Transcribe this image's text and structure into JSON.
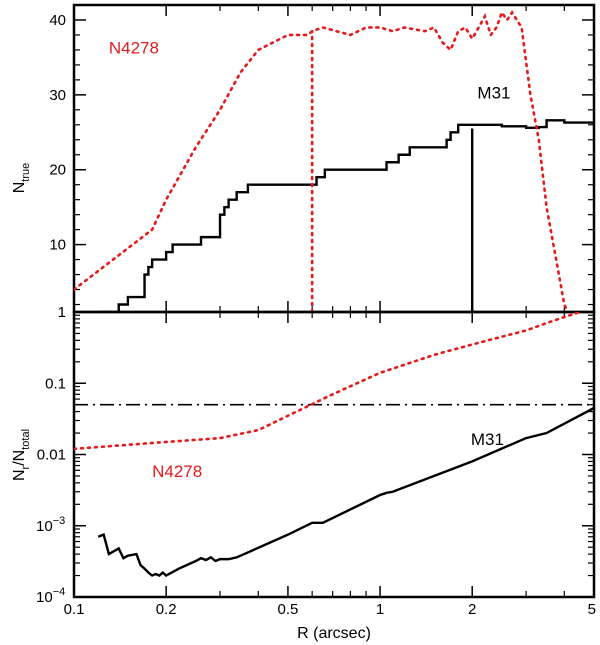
{
  "colors": {
    "m31": "#000000",
    "n4278": "#e41a1c",
    "axis": "#000000"
  },
  "chart_data": [
    {
      "panel": "top",
      "type": "line",
      "xscale": "log",
      "xlim": [
        0.1,
        5
      ],
      "ylim": [
        1,
        42
      ],
      "yticks": [
        10,
        20,
        30,
        40
      ],
      "ytick_labels": [
        "10",
        "20",
        "30",
        "40"
      ],
      "ylabel_main": "N",
      "ylabel_sub": "true",
      "series": [
        {
          "name": "M31",
          "style": "solid-step",
          "x": [
            0.12,
            0.13,
            0.135,
            0.14,
            0.145,
            0.15,
            0.155,
            0.16,
            0.17,
            0.175,
            0.18,
            0.185,
            0.19,
            0.2,
            0.21,
            0.22,
            0.25,
            0.26,
            0.27,
            0.28,
            0.3,
            0.31,
            0.32,
            0.33,
            0.34,
            0.35,
            0.36,
            0.37,
            0.38,
            0.6,
            0.62,
            0.64,
            0.66,
            0.68,
            0.8,
            1.0,
            1.05,
            1.1,
            1.15,
            1.2,
            1.25,
            1.3,
            1.4,
            1.5,
            1.6,
            1.65,
            1.7,
            1.8,
            2.0,
            2.5,
            3.0,
            3.3,
            3.5,
            4.0,
            5.0
          ],
          "y": [
            1,
            1,
            1,
            2,
            2,
            3,
            3,
            3,
            6,
            7,
            8,
            8,
            8,
            9,
            10,
            10,
            10,
            11,
            11,
            11,
            14,
            15,
            16,
            16,
            17,
            17,
            17,
            18,
            18,
            18,
            19,
            19,
            20,
            20,
            20,
            20,
            21,
            21,
            22,
            22,
            23,
            23,
            23,
            23,
            23,
            24,
            25,
            26,
            26,
            25.8,
            25.6,
            25.7,
            26.6,
            26.3,
            26
          ]
        },
        {
          "name": "N4278",
          "style": "dotted",
          "x": [
            0.1,
            0.18,
            0.2,
            0.25,
            0.3,
            0.35,
            0.4,
            0.5,
            0.58,
            0.6,
            0.65,
            0.8,
            0.9,
            1.0,
            1.1,
            1.2,
            1.4,
            1.5,
            1.6,
            1.7,
            1.8,
            1.9,
            2.0,
            2.1,
            2.2,
            2.3,
            2.4,
            2.5,
            2.6,
            2.7,
            2.9,
            3.1,
            3.3,
            3.5,
            3.8,
            4.0,
            4.1,
            4.3
          ],
          "y": [
            4,
            12,
            16,
            23,
            28,
            33,
            36,
            38,
            38,
            38.5,
            39,
            38,
            39,
            39,
            38.5,
            39,
            38.5,
            39,
            37,
            36,
            38.5,
            39,
            37.5,
            39,
            40.5,
            38,
            39,
            41,
            40,
            41,
            39,
            30,
            24,
            15,
            7,
            2,
            1,
            0
          ]
        }
      ],
      "vlines": [
        {
          "x": 0.6,
          "y0": 1,
          "y1": 38.5,
          "style": "dotted",
          "series": "N4278"
        },
        {
          "x": 2.0,
          "y0": 1,
          "y1": 25.5,
          "style": "solid",
          "series": "M31"
        }
      ],
      "annotations": [
        {
          "text": "M31",
          "series": "M31",
          "x": 2.08,
          "y": 29.5
        },
        {
          "text": "N4278",
          "series": "N4278",
          "x": 0.13,
          "y": 35.5
        }
      ]
    },
    {
      "panel": "bottom",
      "type": "line",
      "xscale": "log",
      "yscale": "log",
      "xlim": [
        0.1,
        5
      ],
      "ylim": [
        0.0001,
        1
      ],
      "yticks": [
        0.01,
        0.1,
        1
      ],
      "ytick_labels": [
        "0.01",
        "0.1",
        "1"
      ],
      "ytick_pow_base": "10",
      "ytick_pow": [
        {
          "value": 0.001,
          "exp": "−3"
        },
        {
          "value": 0.0001,
          "exp": "−4"
        }
      ],
      "ylabel_main": "N",
      "ylabel_sub1": "r",
      "ylabel_mid": "/N",
      "ylabel_sub2": "total",
      "xticks": [
        0.1,
        0.2,
        0.5,
        1,
        2,
        5
      ],
      "xtick_labels": [
        "0.1",
        "0.2",
        "0.5",
        "1",
        "2",
        "5"
      ],
      "xlabel": "R (arcsec)",
      "hline": {
        "y": 0.05,
        "style": "dashdot"
      },
      "series": [
        {
          "name": "M31",
          "style": "solid",
          "x": [
            0.12,
            0.125,
            0.13,
            0.14,
            0.145,
            0.15,
            0.16,
            0.165,
            0.17,
            0.175,
            0.18,
            0.185,
            0.19,
            0.195,
            0.2,
            0.22,
            0.25,
            0.26,
            0.27,
            0.28,
            0.29,
            0.3,
            0.32,
            0.34,
            0.35,
            0.5,
            0.6,
            0.65,
            1.0,
            1.05,
            1.1,
            2.0,
            3.0,
            3.5,
            5.0
          ],
          "y": [
            0.0007,
            0.00075,
            0.0004,
            0.00048,
            0.00035,
            0.00038,
            0.0004,
            0.00028,
            0.00025,
            0.00022,
            0.0002,
            0.00021,
            0.0002,
            0.00022,
            0.0002,
            0.00025,
            0.00032,
            0.00035,
            0.00033,
            0.00036,
            0.00032,
            0.00034,
            0.00034,
            0.00036,
            0.00038,
            0.00075,
            0.0011,
            0.0011,
            0.0027,
            0.0029,
            0.003,
            0.008,
            0.017,
            0.02,
            0.045
          ]
        },
        {
          "name": "N4278",
          "style": "dotted",
          "x": [
            0.1,
            0.2,
            0.3,
            0.4,
            0.5,
            0.7,
            1.0,
            1.5,
            2.0,
            2.5,
            3.0,
            3.5,
            4.0,
            4.5
          ],
          "y": [
            0.012,
            0.015,
            0.017,
            0.022,
            0.035,
            0.07,
            0.14,
            0.25,
            0.35,
            0.45,
            0.55,
            0.7,
            0.85,
            1.0
          ]
        }
      ],
      "annotations": [
        {
          "text": "M31",
          "series": "M31",
          "x": 1.98,
          "y": 0.0135
        },
        {
          "text": "N4278",
          "series": "N4278",
          "x": 0.18,
          "y": 0.0048
        }
      ]
    }
  ]
}
